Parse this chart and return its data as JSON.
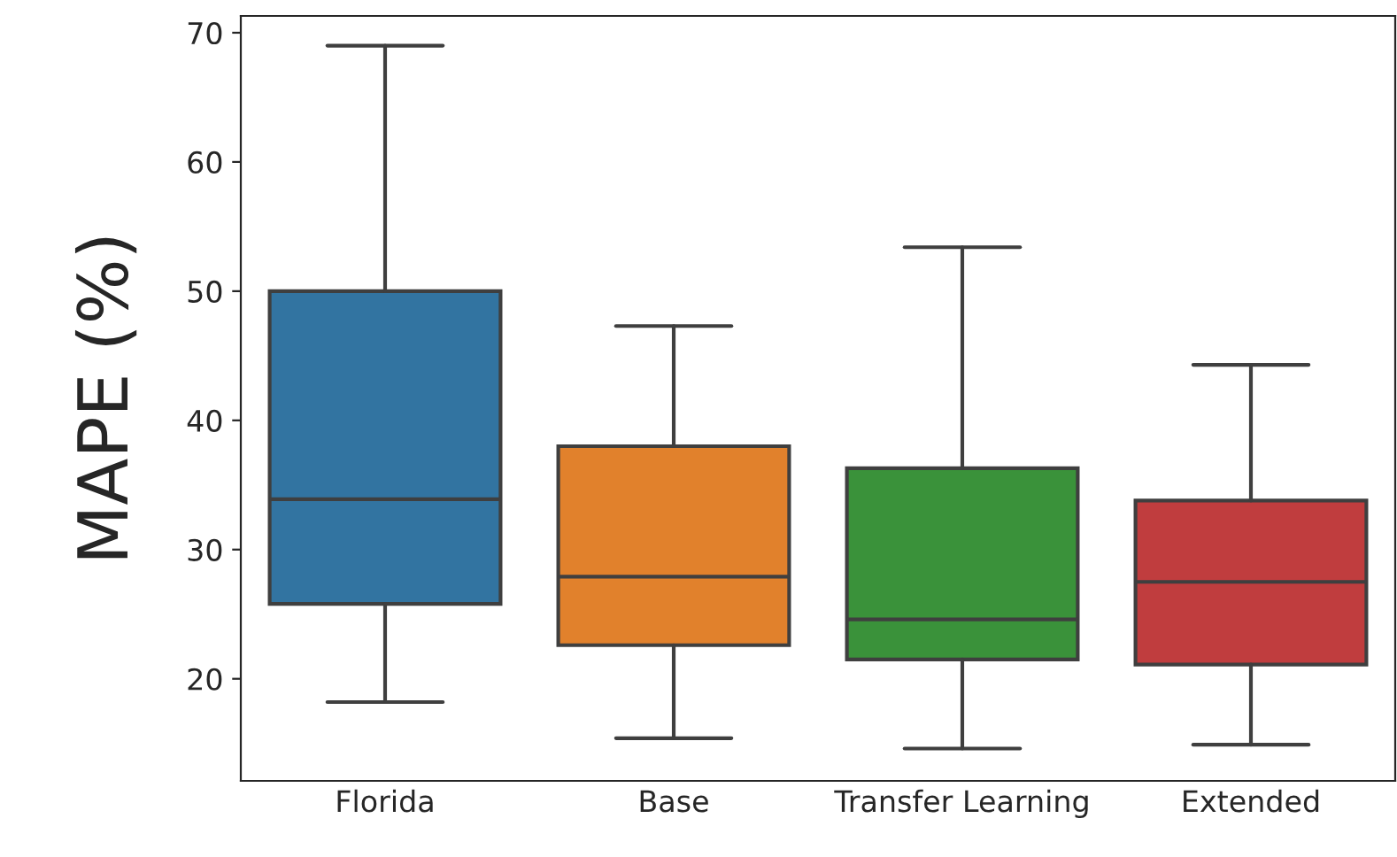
{
  "chart_data": {
    "type": "box",
    "ylabel": "MAPE (%)",
    "categories": [
      "Florida",
      "Base",
      "Transfer Learning",
      "Extended"
    ],
    "colors": [
      "#3274a1",
      "#e1812c",
      "#3a923a",
      "#c03d3e"
    ],
    "boxes": [
      {
        "low": 18.2,
        "q1": 25.8,
        "median": 33.9,
        "q3": 50.0,
        "high": 69.0
      },
      {
        "low": 15.4,
        "q1": 22.6,
        "median": 27.9,
        "q3": 38.0,
        "high": 47.3
      },
      {
        "low": 14.6,
        "q1": 21.5,
        "median": 24.6,
        "q3": 36.3,
        "high": 53.4
      },
      {
        "low": 14.9,
        "q1": 21.1,
        "median": 27.5,
        "q3": 33.8,
        "high": 44.3
      }
    ],
    "ylim": [
      12.1,
      71.3
    ],
    "yticks": [
      20,
      30,
      40,
      50,
      60,
      70
    ],
    "grid": false,
    "legend": false
  }
}
